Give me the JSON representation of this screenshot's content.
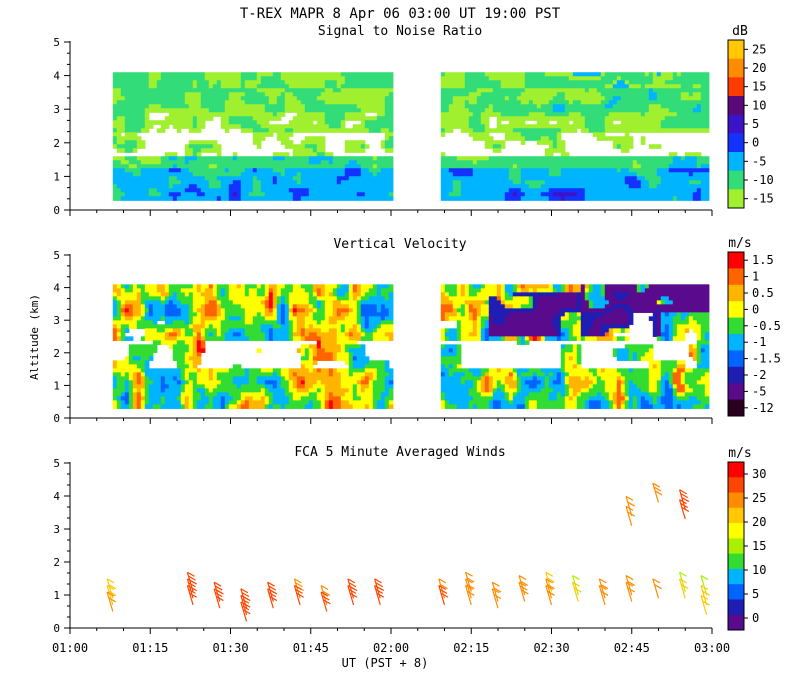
{
  "figure": {
    "title": "T-REX  MAPR  8 Apr 06  03:00 UT  19:00  PST",
    "xlabel": "UT  (PST + 8)",
    "ylabel": "Altitude (km)",
    "x_ticks": [
      "01:00",
      "01:15",
      "01:30",
      "01:45",
      "02:00",
      "02:15",
      "02:30",
      "02:45",
      "03:00"
    ],
    "y_ticks": [
      "0",
      "1",
      "2",
      "3",
      "4",
      "5"
    ]
  },
  "chart_data": [
    {
      "type": "heatmap",
      "id": "snr",
      "title": "Signal to Noise Ratio",
      "ylabel": "",
      "xlim": [
        "01:00",
        "03:00"
      ],
      "ylim": [
        0,
        5
      ],
      "data_gap": [
        "02:00",
        "02:09"
      ],
      "valid_range_km": [
        0.3,
        4.1
      ],
      "colorbar": {
        "unit": "dB",
        "labels": [
          "25",
          "20",
          "15",
          "10",
          "5",
          "0",
          "-5",
          "-10",
          "-15"
        ],
        "colors": [
          "#ffc800",
          "#ff8c00",
          "#ff3c00",
          "#5a0a78",
          "#3c14c8",
          "#1432ff",
          "#00b4ff",
          "#32dc78",
          "#a0f030"
        ]
      },
      "description_profile": [
        {
          "alt_km": 0.3,
          "snr_db": -5
        },
        {
          "alt_km": 1.0,
          "snr_db": -5
        },
        {
          "alt_km": 1.5,
          "snr_db": -10
        },
        {
          "alt_km": 2.0,
          "snr_db": -17
        },
        {
          "alt_km": 2.7,
          "snr_db": -15
        },
        {
          "alt_km": 3.5,
          "snr_db": -10
        },
        {
          "alt_km": 4.1,
          "snr_db": -15
        }
      ]
    },
    {
      "type": "heatmap",
      "id": "vvel",
      "title": "Vertical Velocity",
      "xlim": [
        "01:00",
        "03:00"
      ],
      "ylim": [
        0,
        5
      ],
      "data_gap": [
        "02:00",
        "02:09"
      ],
      "valid_range_km": [
        0.3,
        4.1
      ],
      "colorbar": {
        "unit": "m/s",
        "labels": [
          "1.5",
          "1",
          "0.5",
          "0",
          "-0.5",
          "-1",
          "-1.5",
          "-2",
          "-5",
          "-12"
        ],
        "colors": [
          "#ff0000",
          "#ff6400",
          "#ffb400",
          "#ffff00",
          "#32dc32",
          "#00b4ff",
          "#0064ff",
          "#1e1eb4",
          "#5a0a8c",
          "#28001e"
        ]
      }
    },
    {
      "type": "scatter",
      "id": "winds",
      "title": "FCA 5 Minute Averaged Winds",
      "marker": "wind-barb",
      "xlim": [
        "01:00",
        "03:00"
      ],
      "ylim": [
        0,
        5
      ],
      "colorbar": {
        "unit": "m/s",
        "labels": [
          "30",
          "25",
          "20",
          "15",
          "10",
          "5",
          "0"
        ],
        "colors": [
          "#ff0000",
          "#ff4600",
          "#ff8c00",
          "#ffc800",
          "#ffff00",
          "#aaf000",
          "#32dc32",
          "#00b4ff",
          "#0064ff",
          "#1e1eb4",
          "#5a0a8c"
        ]
      },
      "barbs": [
        {
          "t": "01:08",
          "alt": 0.9,
          "speed": 22
        },
        {
          "t": "01:08",
          "alt": 0.7,
          "speed": 22
        },
        {
          "t": "01:08",
          "alt": 0.5,
          "speed": 24
        },
        {
          "t": "01:23",
          "alt": 1.1,
          "speed": 27
        },
        {
          "t": "01:23",
          "alt": 0.9,
          "speed": 28
        },
        {
          "t": "01:23",
          "alt": 0.7,
          "speed": 28
        },
        {
          "t": "01:28",
          "alt": 0.8,
          "speed": 27
        },
        {
          "t": "01:28",
          "alt": 0.6,
          "speed": 27
        },
        {
          "t": "01:33",
          "alt": 0.6,
          "speed": 28
        },
        {
          "t": "01:33",
          "alt": 0.4,
          "speed": 28
        },
        {
          "t": "01:33",
          "alt": 0.2,
          "speed": 28
        },
        {
          "t": "01:38",
          "alt": 0.8,
          "speed": 27
        },
        {
          "t": "01:38",
          "alt": 0.6,
          "speed": 27
        },
        {
          "t": "01:43",
          "alt": 0.9,
          "speed": 25
        },
        {
          "t": "01:43",
          "alt": 0.7,
          "speed": 27
        },
        {
          "t": "01:48",
          "alt": 0.7,
          "speed": 23
        },
        {
          "t": "01:48",
          "alt": 0.5,
          "speed": 27
        },
        {
          "t": "01:53",
          "alt": 0.9,
          "speed": 26
        },
        {
          "t": "01:53",
          "alt": 0.7,
          "speed": 28
        },
        {
          "t": "01:58",
          "alt": 0.9,
          "speed": 28
        },
        {
          "t": "01:58",
          "alt": 0.7,
          "speed": 28
        },
        {
          "t": "02:10",
          "alt": 0.9,
          "speed": 24
        },
        {
          "t": "02:10",
          "alt": 0.7,
          "speed": 27
        },
        {
          "t": "02:15",
          "alt": 1.1,
          "speed": 23
        },
        {
          "t": "02:15",
          "alt": 0.9,
          "speed": 24
        },
        {
          "t": "02:15",
          "alt": 0.7,
          "speed": 24
        },
        {
          "t": "02:20",
          "alt": 0.8,
          "speed": 24
        },
        {
          "t": "02:20",
          "alt": 0.6,
          "speed": 24
        },
        {
          "t": "02:25",
          "alt": 1.0,
          "speed": 23
        },
        {
          "t": "02:25",
          "alt": 0.8,
          "speed": 25
        },
        {
          "t": "02:30",
          "alt": 1.1,
          "speed": 20
        },
        {
          "t": "02:30",
          "alt": 0.9,
          "speed": 23
        },
        {
          "t": "02:30",
          "alt": 0.7,
          "speed": 24
        },
        {
          "t": "02:35",
          "alt": 1.0,
          "speed": 14
        },
        {
          "t": "02:35",
          "alt": 0.8,
          "speed": 22
        },
        {
          "t": "02:40",
          "alt": 0.9,
          "speed": 24
        },
        {
          "t": "02:40",
          "alt": 0.7,
          "speed": 24
        },
        {
          "t": "02:45",
          "alt": 1.0,
          "speed": 24
        },
        {
          "t": "02:45",
          "alt": 0.8,
          "speed": 24
        },
        {
          "t": "02:45",
          "alt": 3.4,
          "speed": 24
        },
        {
          "t": "02:45",
          "alt": 3.1,
          "speed": 24
        },
        {
          "t": "02:50",
          "alt": 3.8,
          "speed": 25
        },
        {
          "t": "02:50",
          "alt": 0.9,
          "speed": 24
        },
        {
          "t": "02:55",
          "alt": 1.1,
          "speed": 14
        },
        {
          "t": "02:55",
          "alt": 0.9,
          "speed": 22
        },
        {
          "t": "02:55",
          "alt": 3.6,
          "speed": 27
        },
        {
          "t": "02:55",
          "alt": 3.3,
          "speed": 27
        },
        {
          "t": "02:59",
          "alt": 1.0,
          "speed": 14
        },
        {
          "t": "02:59",
          "alt": 0.7,
          "speed": 22
        },
        {
          "t": "02:59",
          "alt": 0.4,
          "speed": 22
        }
      ]
    }
  ]
}
